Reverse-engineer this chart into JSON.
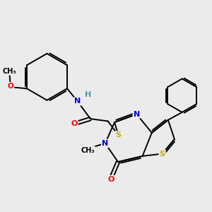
{
  "bg_color": "#ebebeb",
  "atom_colors": {
    "C": "#000000",
    "N": "#0000cc",
    "O": "#ff0000",
    "S": "#ccaa00",
    "H": "#4a9a9a"
  },
  "bond_color": "#000000",
  "figsize": [
    3.0,
    3.0
  ],
  "dpi": 100
}
